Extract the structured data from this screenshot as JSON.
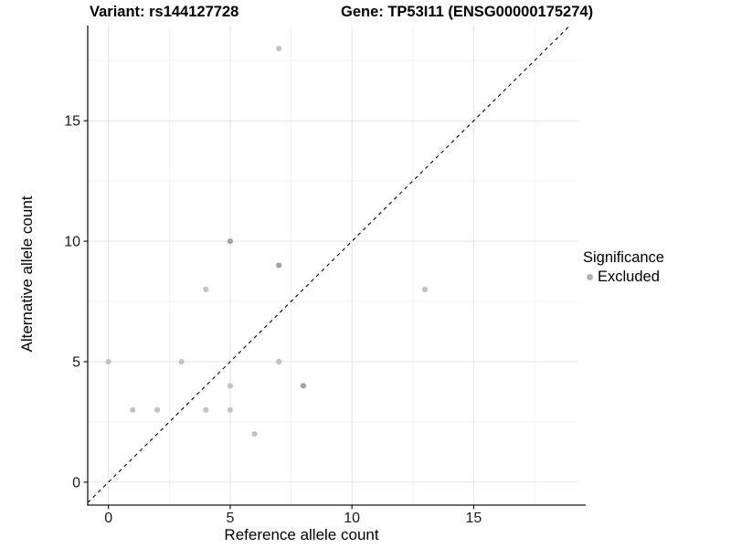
{
  "chart_data": {
    "type": "scatter",
    "title_variant": "Variant: rs144127728",
    "title_gene": "Gene: TP53I11 (ENSG00000175274)",
    "xlabel": "Reference allele count",
    "ylabel": "Alternative allele count",
    "x_ticks": [
      0,
      5,
      10,
      15
    ],
    "y_ticks": [
      0,
      5,
      10,
      15
    ],
    "x_minor_ticks": [
      2.5,
      7.5,
      12.5,
      17.5
    ],
    "y_minor_ticks": [
      2.5,
      7.5,
      12.5,
      17.5
    ],
    "xlim": [
      -0.85,
      19.3
    ],
    "ylim": [
      -0.95,
      18.95
    ],
    "grid": true,
    "identity_line": {
      "slope": 1,
      "intercept": 0,
      "style": "dashed"
    },
    "legend": {
      "title": "Significance",
      "position": "right",
      "items": [
        {
          "label": "Excluded"
        }
      ]
    },
    "series": [
      {
        "name": "Excluded",
        "points": [
          {
            "x": 0,
            "y": 5,
            "overlap": 1
          },
          {
            "x": 1,
            "y": 3,
            "overlap": 1
          },
          {
            "x": 2,
            "y": 3,
            "overlap": 1
          },
          {
            "x": 3,
            "y": 5,
            "overlap": 1
          },
          {
            "x": 4,
            "y": 3,
            "overlap": 1
          },
          {
            "x": 4,
            "y": 8,
            "overlap": 1
          },
          {
            "x": 5,
            "y": 3,
            "overlap": 1
          },
          {
            "x": 5,
            "y": 4,
            "overlap": 1
          },
          {
            "x": 5,
            "y": 10,
            "overlap": 2
          },
          {
            "x": 6,
            "y": 2,
            "overlap": 1
          },
          {
            "x": 7,
            "y": 5,
            "overlap": 1
          },
          {
            "x": 7,
            "y": 9,
            "overlap": 2
          },
          {
            "x": 7,
            "y": 18,
            "overlap": 1
          },
          {
            "x": 8,
            "y": 4,
            "overlap": 2
          },
          {
            "x": 13,
            "y": 8,
            "overlap": 1
          }
        ]
      }
    ]
  },
  "style": {
    "point_color_single": "#c3c3c3",
    "point_color_overlap": "#a4a4a4",
    "legend_dot_color": "#b3b3b3",
    "grid_major_color": "#e4e4e4",
    "grid_minor_color": "#f3f3f3",
    "axis_color": "#1b1b1b",
    "identity_line_color": "#000000",
    "tick_label_color": "#1a1a1a"
  }
}
